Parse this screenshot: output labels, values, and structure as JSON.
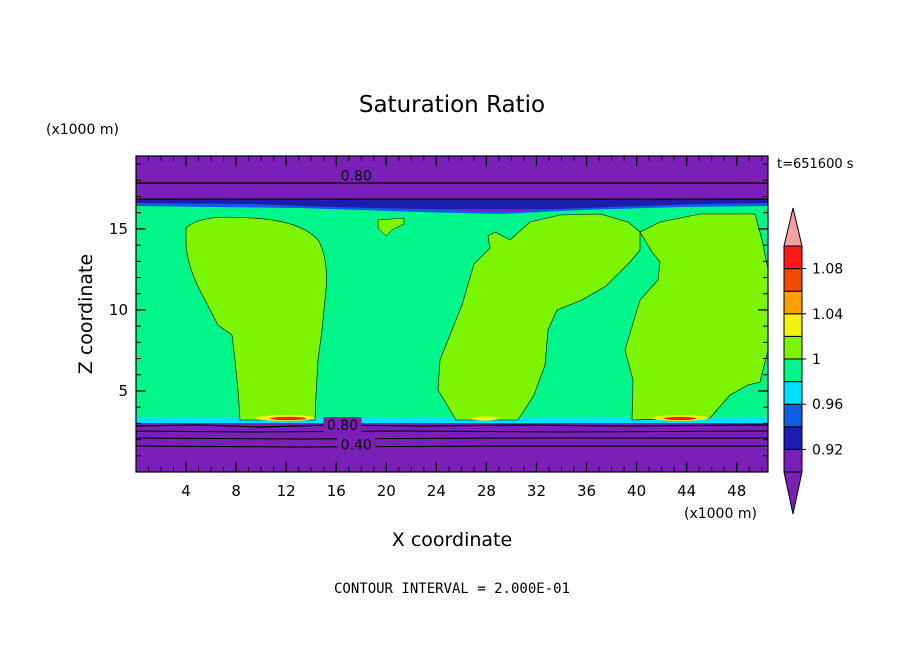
{
  "chart_data": {
    "type": "contour",
    "title": "Saturation Ratio",
    "xlabel": "X coordinate",
    "ylabel": "Z coordinate",
    "x_unit": "(x1000 m)",
    "y_unit": "(x1000 m)",
    "time_label": "t=651600 s",
    "footer": "CONTOUR INTERVAL = 2.000E-01",
    "xlim": [
      0,
      50.5
    ],
    "ylim": [
      0,
      19.5
    ],
    "x_ticks": [
      4,
      8,
      12,
      16,
      20,
      24,
      28,
      32,
      36,
      40,
      44,
      48
    ],
    "y_ticks": [
      5,
      10,
      15
    ],
    "contour_labels": [
      {
        "text": "0.80",
        "x": 17.6,
        "z": 18.3
      },
      {
        "text": "0.80",
        "x": 16.5,
        "z": 2.9
      },
      {
        "text": "0.40",
        "x": 17.6,
        "z": 1.7
      }
    ],
    "colorbar": {
      "levels": [
        0.9,
        0.92,
        0.94,
        0.96,
        0.98,
        1.0,
        1.02,
        1.04,
        1.06,
        1.08,
        1.1
      ],
      "labels": [
        "1.08",
        "1.04",
        "1",
        "0.96",
        "0.92"
      ],
      "colors": [
        "#7a1fb8",
        "#1c1cb0",
        "#0f5ee6",
        "#00e1ff",
        "#00f58a",
        "#7bf500",
        "#f2f20c",
        "#ff9f00",
        "#f24a00",
        "#ff1a1a"
      ],
      "over_color": "#f2a0a0",
      "under_color": "#7a1fb8"
    }
  }
}
